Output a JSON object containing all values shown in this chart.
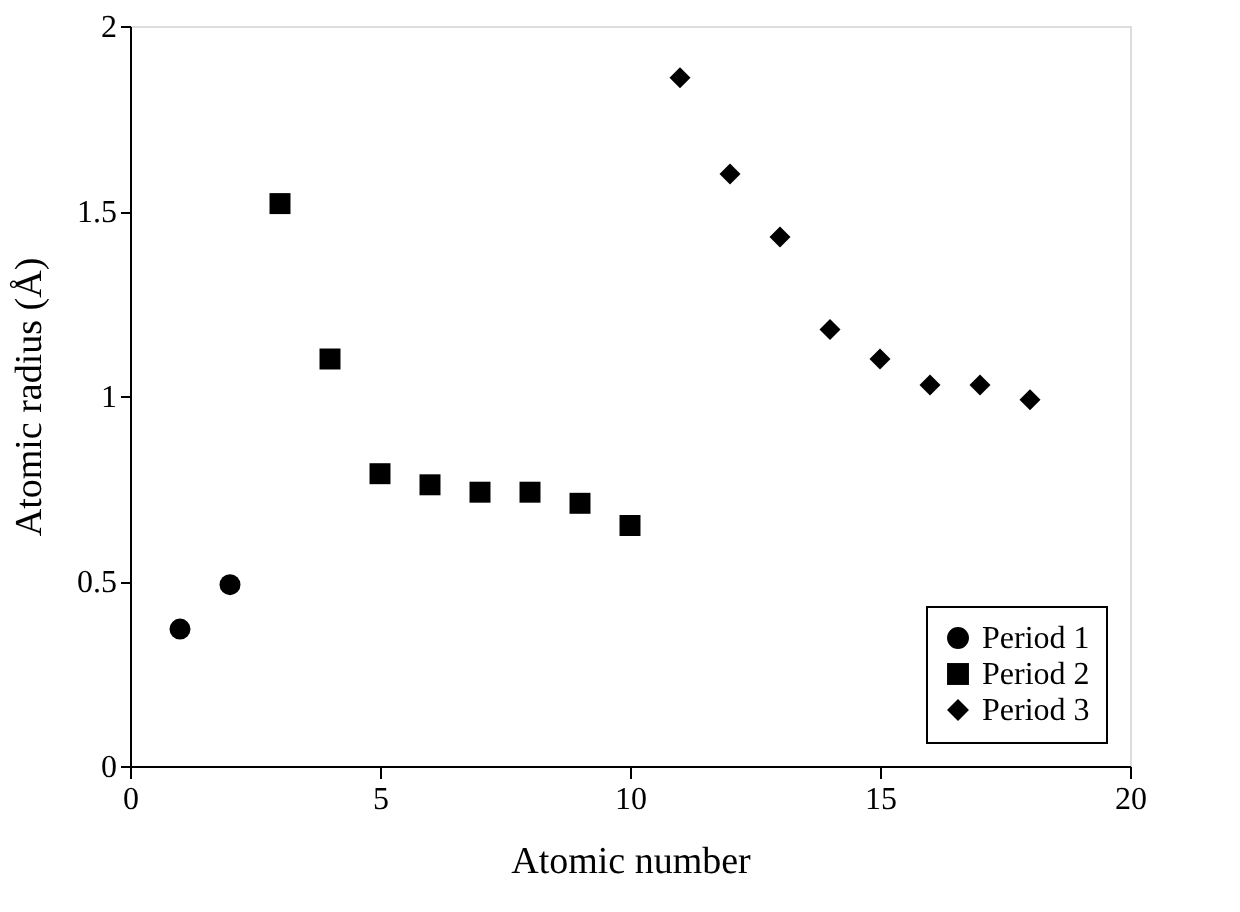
{
  "chart_data": {
    "type": "scatter",
    "xlabel": "Atomic number",
    "ylabel": "Atomic radius (Å)",
    "xlim": [
      0,
      20
    ],
    "xticks": [
      0,
      5,
      10,
      15,
      20
    ],
    "ylim": [
      0,
      2
    ],
    "yticks": [
      0,
      0.5,
      1,
      1.5,
      2
    ],
    "grid": false,
    "legend": "bottom right",
    "series": [
      {
        "name": "Period 1",
        "color": "#000000",
        "marker": "circle",
        "x": [
          1,
          2
        ],
        "values": [
          0.37,
          0.49
        ]
      },
      {
        "name": "Period 2",
        "color": "#000000",
        "marker": "square",
        "x": [
          3,
          4,
          5,
          6,
          7,
          8,
          9,
          10
        ],
        "values": [
          1.52,
          1.1,
          0.79,
          0.76,
          0.74,
          0.74,
          0.71,
          0.65
        ]
      },
      {
        "name": "Period 3",
        "color": "#000000",
        "marker": "diamond",
        "x": [
          11,
          12,
          13,
          14,
          15,
          16,
          17,
          18
        ],
        "values": [
          1.86,
          1.6,
          1.43,
          1.18,
          1.1,
          1.03,
          1.03,
          0.99
        ]
      }
    ]
  }
}
